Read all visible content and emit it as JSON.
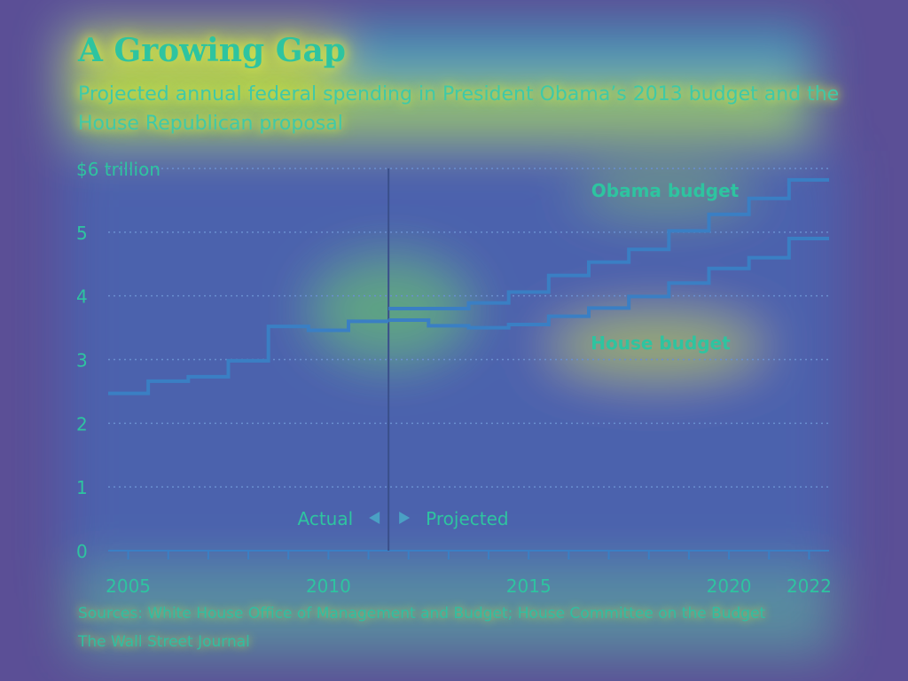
{
  "colors": {
    "background": "#5b4f96",
    "line": "#3a7fc4",
    "text": "#2ec4a0",
    "grid": "#6a8fd0",
    "glow": "#d8e84a"
  },
  "header": {
    "title": "A Growing Gap",
    "subtitle": "Projected annual federal spending in President Obama’s 2013 budget and the House Republican proposal"
  },
  "footer": {
    "sources": "Sources: White House Office of Management and Budget; House Committee on the Budget",
    "credit": "The Wall Street Journal"
  },
  "chart_data": {
    "type": "line",
    "step": true,
    "title": "A Growing Gap",
    "ylabel": "",
    "xlabel": "",
    "ylim": [
      0,
      6
    ],
    "xlim": [
      2004.5,
      2022.5
    ],
    "y_ticks": [
      {
        "value": 6,
        "label": "$6 trillion"
      },
      {
        "value": 5,
        "label": "5"
      },
      {
        "value": 4,
        "label": "4"
      },
      {
        "value": 3,
        "label": "3"
      },
      {
        "value": 2,
        "label": "2"
      },
      {
        "value": 1,
        "label": "1"
      },
      {
        "value": 0,
        "label": "0"
      }
    ],
    "x_tick_years": [
      2005,
      2006,
      2007,
      2008,
      2009,
      2010,
      2011,
      2012,
      2013,
      2014,
      2015,
      2016,
      2017,
      2018,
      2019,
      2020,
      2021,
      2022
    ],
    "x_tick_labels": [
      {
        "value": 2005,
        "label": "2005"
      },
      {
        "value": 2010,
        "label": "2010"
      },
      {
        "value": 2015,
        "label": "2015"
      },
      {
        "value": 2020,
        "label": "2020"
      },
      {
        "value": 2022,
        "label": "2022"
      }
    ],
    "divider_year": 2011.5,
    "divider_labels": {
      "left": "Actual",
      "right": "Projected"
    },
    "grid": true,
    "actual": {
      "x": [
        2005,
        2006,
        2007,
        2008,
        2009,
        2010,
        2011
      ],
      "values": [
        2.47,
        2.66,
        2.73,
        2.98,
        3.52,
        3.46,
        3.6
      ]
    },
    "series": [
      {
        "name": "Obama budget",
        "x": [
          2012,
          2013,
          2014,
          2015,
          2016,
          2017,
          2018,
          2019,
          2020,
          2021,
          2022
        ],
        "values": [
          3.8,
          3.8,
          3.89,
          4.06,
          4.32,
          4.53,
          4.73,
          5.02,
          5.28,
          5.53,
          5.82
        ]
      },
      {
        "name": "House budget",
        "x": [
          2012,
          2013,
          2014,
          2015,
          2016,
          2017,
          2018,
          2019,
          2020,
          2021,
          2022
        ],
        "values": [
          3.62,
          3.53,
          3.5,
          3.55,
          3.68,
          3.81,
          3.99,
          4.2,
          4.43,
          4.6,
          4.9
        ]
      }
    ]
  }
}
